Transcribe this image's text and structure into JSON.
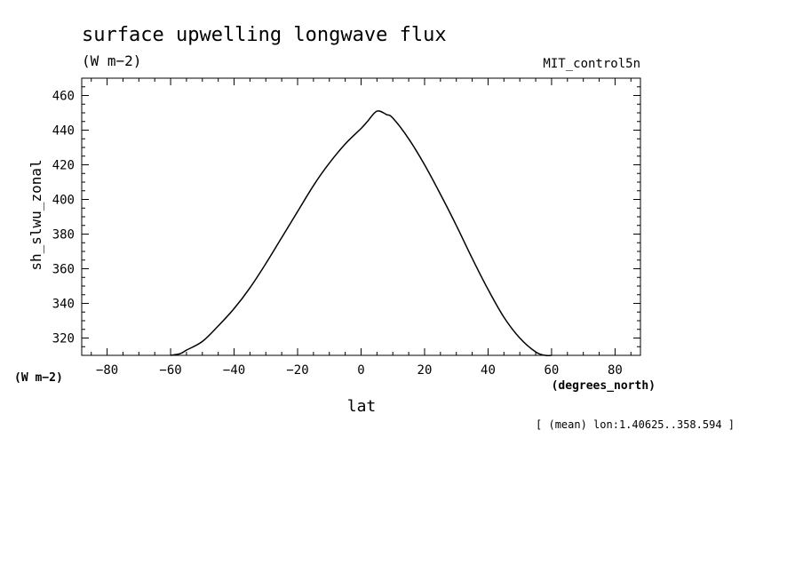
{
  "chart_data": {
    "type": "line",
    "title": "surface upwelling longwave flux",
    "units": "(W m−2)",
    "dataset": "MIT_control5n",
    "ylabel": "sh_slwu_zonal",
    "yunits": "(W m−2)",
    "xlabel": "lat",
    "xunits": "(degrees_north)",
    "footnote": "[ (mean) lon:1.40625..358.594 ]",
    "xlim": [
      -88,
      88
    ],
    "ylim": [
      310,
      470
    ],
    "xticks": [
      -80,
      -60,
      -40,
      -20,
      0,
      20,
      40,
      60,
      80
    ],
    "xtick_labels": [
      "−80",
      "−60",
      "−40",
      "−20",
      "0",
      "20",
      "40",
      "60",
      "80"
    ],
    "yticks": [
      320,
      340,
      360,
      380,
      400,
      420,
      440,
      460
    ],
    "ytick_labels": [
      "320",
      "340",
      "360",
      "380",
      "400",
      "420",
      "440",
      "460"
    ],
    "grid": false,
    "line_color": "#000000",
    "series": [
      {
        "x": [
          -60,
          -57,
          -55,
          -50,
          -45,
          -40,
          -35,
          -30,
          -25,
          -20,
          -15,
          -10,
          -5,
          0,
          2,
          5,
          8,
          10,
          15,
          20,
          25,
          30,
          35,
          40,
          45,
          50,
          55,
          58,
          60
        ],
        "y": [
          310,
          311,
          313,
          318,
          327,
          337,
          349,
          363,
          378,
          393,
          408,
          421,
          432,
          441,
          445,
          451,
          449,
          447,
          435,
          420,
          403,
          385,
          366,
          348,
          332,
          320,
          312,
          310,
          310
        ]
      }
    ]
  }
}
